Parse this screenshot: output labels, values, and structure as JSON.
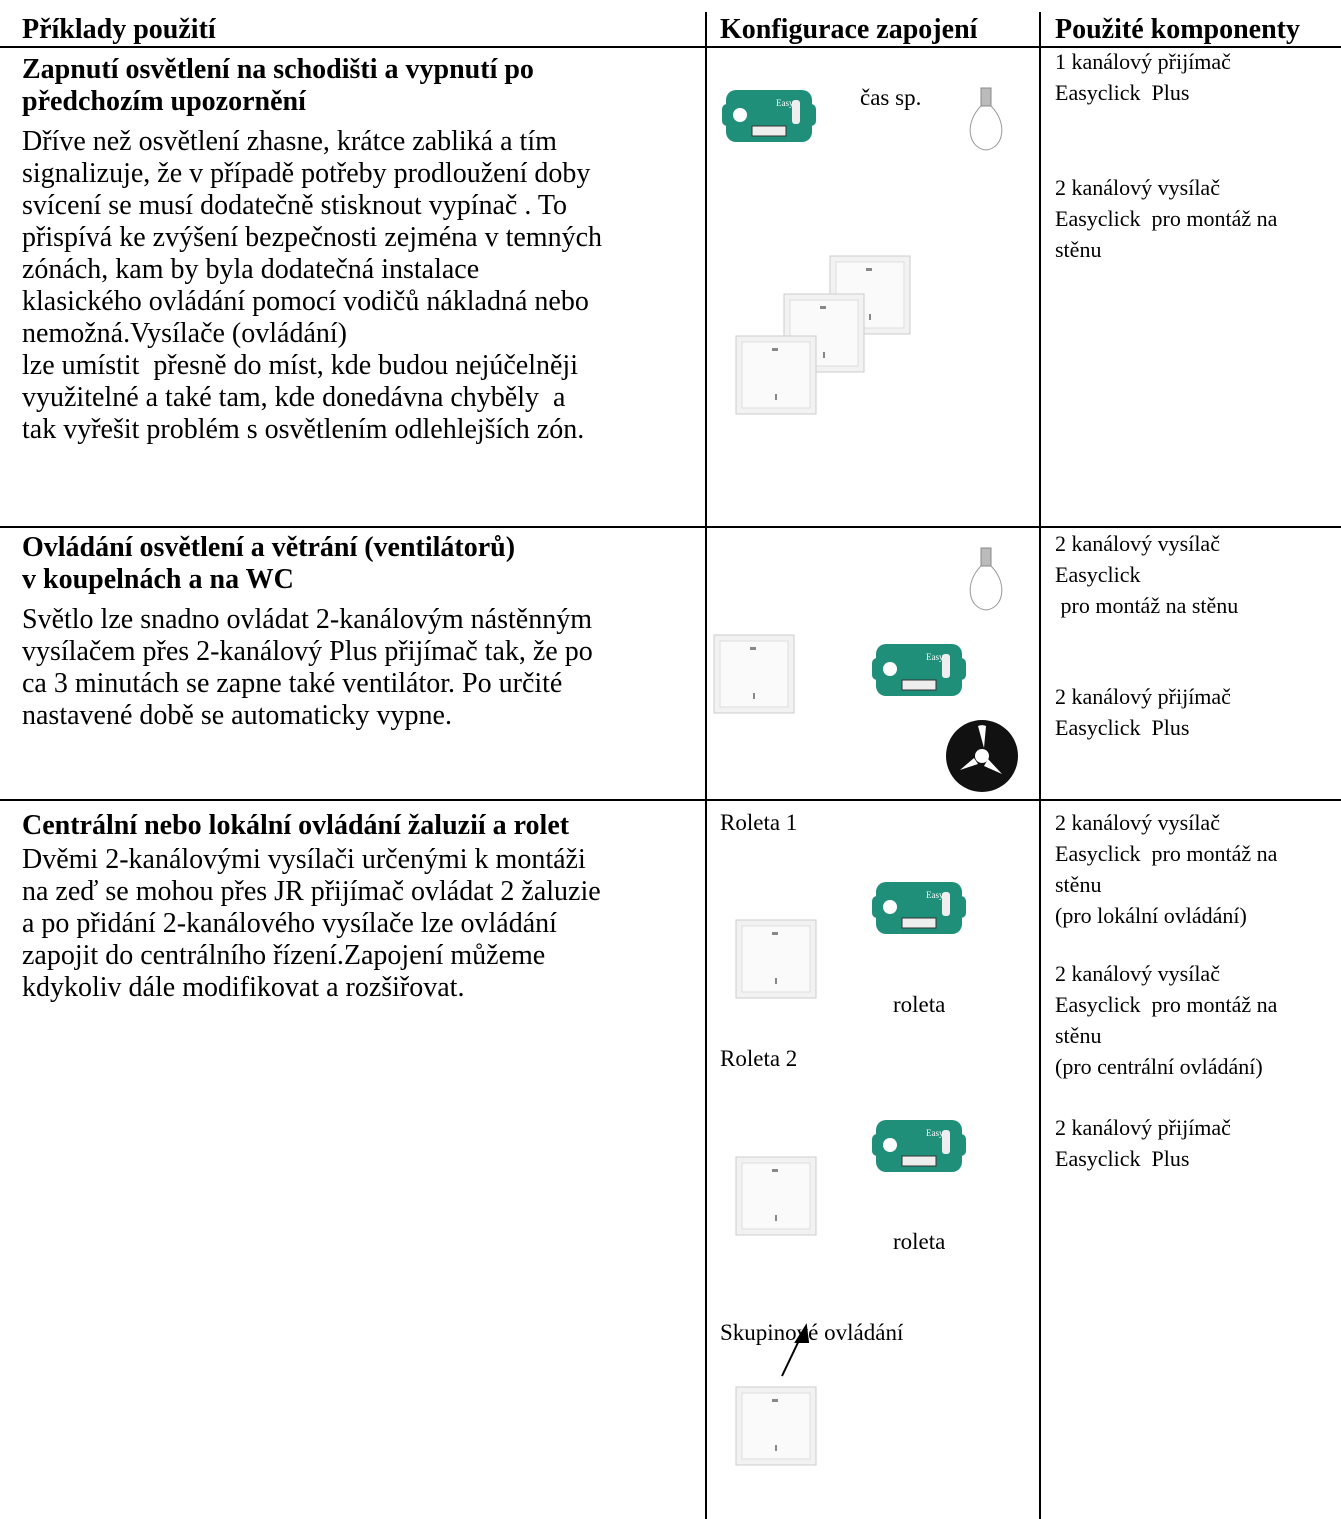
{
  "header": {
    "columns": [
      "Příklady použití",
      "Konfigurace zapojení",
      "Použité komponenty"
    ]
  },
  "rows": [
    {
      "title": [
        "Zapnutí osvětlení na schodišti a vypnutí po",
        "předchozím upozornění"
      ],
      "description": [
        "Dříve než osvětlení zhasne, krátce zabliká a tím",
        "signalizuje, že v případě potřeby prodloužení doby",
        "svícení se musí dodatečně stisknout vypínač . To",
        "přispívá ke zvýšení bezpečnosti zejména v temných",
        "zónách, kam by byla dodatečná instalace",
        "klasického ovládání pomocí vodičů nákladná nebo",
        "nemožná.Vysílače (ovládání)",
        "lze umístit  přesně do míst, kde budou nejúčelněji",
        "využitelné a také tam, kde donedávna chyběly  a",
        "tak vyřešit problém s osvětlením odlehlejších zón."
      ],
      "config_labels": [
        "čas sp."
      ],
      "components": [
        [
          "1 kanálový přijímač",
          "Easyclick  Plus"
        ],
        [
          "2 kanálový vysílač",
          "Easyclick  pro montáž na",
          "stěnu"
        ]
      ]
    },
    {
      "title": [
        "Ovládání osvětlení a větrání (ventilátorů)",
        "v koupelnách a na WC"
      ],
      "description": [
        "Světlo lze snadno ovládat 2-kanálovým nástěnným",
        "vysílačem přes 2-kanálový Plus přijímač tak, že po",
        "ca 3 minutách se zapne také ventilátor. Po určité",
        "nastavené době se automaticky vypne."
      ],
      "config_labels": [],
      "components": [
        [
          "2 kanálový vysílač",
          "Easyclick",
          " pro montáž na stěnu"
        ],
        [
          "2 kanálový přijímač",
          "Easyclick  Plus"
        ]
      ]
    },
    {
      "title": [
        "Centrální nebo lokální ovládání žaluzií a rolet"
      ],
      "description": [
        "Dvěmi 2-kanálovými vysílači určenými k montáži",
        "na zeď se mohou přes JR přijímač ovládat 2 žaluzie",
        "a po přidání 2-kanálového vysílače lze ovládání",
        "zapojit do centrálního řízení.Zapojení můžeme",
        "kdykoliv dále modifikovat a rozšiřovat."
      ],
      "config_labels": [
        "Roleta 1",
        "roleta",
        "Roleta 2",
        "roleta",
        "Skupinové ovládání"
      ],
      "components": [
        [
          "2 kanálový vysílač",
          "Easyclick  pro montáž na",
          "stěnu",
          "(pro lokální ovládání)"
        ],
        [
          "2 kanálový vysílač",
          "Easyclick  pro montáž na",
          "stěnu",
          "(pro centrální ovládání)"
        ],
        [
          "2 kanálový přijímač",
          "Easyclick  Plus"
        ]
      ]
    }
  ]
}
